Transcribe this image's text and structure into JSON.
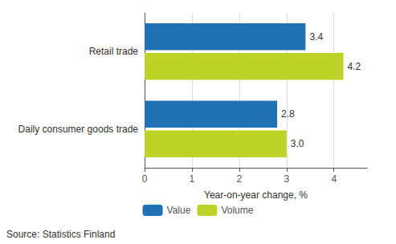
{
  "chart_data": {
    "type": "bar",
    "orientation": "horizontal",
    "categories": [
      "Daily consumer goods trade",
      "Retail trade"
    ],
    "series": [
      {
        "name": "Value",
        "color": "#2171b5",
        "values": [
          2.8,
          3.4
        ],
        "value_labels": [
          "2.8",
          "3.4"
        ]
      },
      {
        "name": "Volume",
        "color": "#bdd327",
        "values": [
          3.0,
          4.2
        ],
        "value_labels": [
          "3.0",
          "4.2"
        ]
      }
    ],
    "xlabel": "Year-on-year change, %",
    "xlim": [
      0,
      4.7
    ],
    "xticks": [
      0,
      1,
      2,
      3,
      4
    ],
    "grid": true,
    "legend": "bottom",
    "data_labels": true,
    "annotations": [
      "Source: Statistics Finland"
    ]
  }
}
